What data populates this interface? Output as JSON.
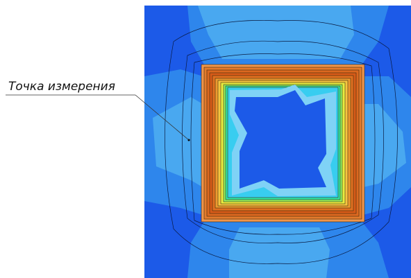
{
  "annotation": {
    "label": "Точка измерения"
  }
}
